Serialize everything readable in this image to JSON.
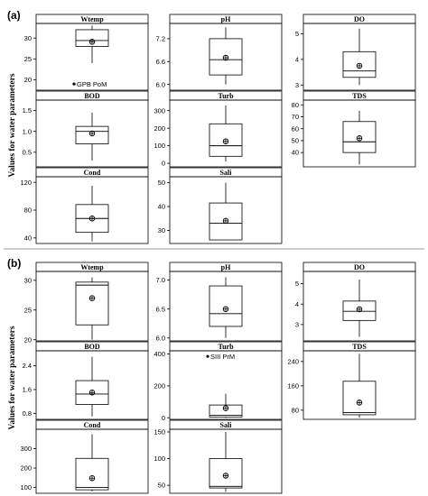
{
  "figure": {
    "sections": [
      {
        "label": "(a)",
        "ylabel": "Values for water parameters"
      },
      {
        "label": "(b)",
        "ylabel": "Values for water parameters"
      }
    ]
  },
  "chart_data": [
    {
      "type": "box",
      "section": "(a)",
      "title": "Wtemp",
      "yticks": [
        20,
        25,
        30
      ],
      "ylim": [
        17.5,
        33.5
      ],
      "box": {
        "whisker_low": 24,
        "q1": 28,
        "median": 29.4,
        "q3": 32,
        "whisker_high": 33,
        "mean": 29.1
      },
      "outliers": [
        {
          "value": 19,
          "label": "GPB PoM"
        }
      ]
    },
    {
      "type": "box",
      "section": "(a)",
      "title": "pH",
      "yticks": [
        6.0,
        6.6,
        7.2
      ],
      "ylim": [
        5.85,
        7.6
      ],
      "box": {
        "whisker_low": 6.0,
        "q1": 6.25,
        "median": 6.65,
        "q3": 7.2,
        "whisker_high": 7.5,
        "mean": 6.7
      },
      "outliers": []
    },
    {
      "type": "box",
      "section": "(a)",
      "title": "DO",
      "yticks": [
        3,
        4,
        5
      ],
      "ylim": [
        2.8,
        5.4
      ],
      "box": {
        "whisker_low": 3.0,
        "q1": 3.3,
        "median": 3.55,
        "q3": 4.3,
        "whisker_high": 5.2,
        "mean": 3.75
      },
      "outliers": []
    },
    {
      "type": "box",
      "section": "(a)",
      "title": "BOD",
      "yticks": [
        0.5,
        1.0,
        1.5
      ],
      "ylim": [
        0.15,
        1.75
      ],
      "box": {
        "whisker_low": 0.3,
        "q1": 0.7,
        "median": 1.0,
        "q3": 1.12,
        "whisker_high": 1.45,
        "mean": 0.95
      },
      "outliers": []
    },
    {
      "type": "box",
      "section": "(a)",
      "title": "Turb",
      "yticks": [
        0,
        100,
        200,
        300
      ],
      "ylim": [
        -20,
        360
      ],
      "box": {
        "whisker_low": 10,
        "q1": 40,
        "median": 100,
        "q3": 225,
        "whisker_high": 330,
        "mean": 125
      },
      "outliers": []
    },
    {
      "type": "box",
      "section": "(a)",
      "title": "TDS",
      "yticks": [
        40,
        50,
        60,
        70,
        80
      ],
      "ylim": [
        28,
        84
      ],
      "box": {
        "whisker_low": 30,
        "q1": 40,
        "median": 49,
        "q3": 66,
        "whisker_high": 75,
        "mean": 52
      },
      "outliers": []
    },
    {
      "type": "box",
      "section": "(a)",
      "title": "Cond",
      "yticks": [
        40,
        80,
        120
      ],
      "ylim": [
        32,
        128
      ],
      "box": {
        "whisker_low": 35,
        "q1": 48,
        "median": 68,
        "q3": 88,
        "whisker_high": 115,
        "mean": 68
      },
      "outliers": []
    },
    {
      "type": "box",
      "section": "(a)",
      "title": "Sali",
      "yticks": [
        30,
        40,
        50
      ],
      "ylim": [
        24.5,
        52.5
      ],
      "box": {
        "whisker_low": 26,
        "q1": 26,
        "median": 33,
        "q3": 41.5,
        "whisker_high": 50,
        "mean": 34
      },
      "outliers": []
    },
    {
      "type": "box",
      "section": "(b)",
      "title": "Wtemp",
      "yticks": [
        20,
        25,
        30
      ],
      "ylim": [
        19.8,
        31.5
      ],
      "box": {
        "whisker_low": 20,
        "q1": 22.5,
        "median": 29.2,
        "q3": 29.7,
        "whisker_high": 30.5,
        "mean": 27
      },
      "outliers": []
    },
    {
      "type": "box",
      "section": "(b)",
      "title": "pH",
      "yticks": [
        6.0,
        6.5,
        7.0
      ],
      "ylim": [
        5.95,
        7.15
      ],
      "box": {
        "whisker_low": 6.0,
        "q1": 6.2,
        "median": 6.42,
        "q3": 6.9,
        "whisker_high": 7.05,
        "mean": 6.5
      },
      "outliers": []
    },
    {
      "type": "box",
      "section": "(b)",
      "title": "DO",
      "yticks": [
        3,
        4,
        5
      ],
      "ylim": [
        2.2,
        5.6
      ],
      "box": {
        "whisker_low": 2.4,
        "q1": 3.2,
        "median": 3.65,
        "q3": 4.15,
        "whisker_high": 5.2,
        "mean": 3.75
      },
      "outliers": []
    },
    {
      "type": "box",
      "section": "(b)",
      "title": "BOD",
      "yticks": [
        0.8,
        1.6,
        2.4
      ],
      "ylim": [
        0.6,
        2.9
      ],
      "box": {
        "whisker_low": 0.7,
        "q1": 1.1,
        "median": 1.45,
        "q3": 1.9,
        "whisker_high": 2.7,
        "mean": 1.5
      },
      "outliers": []
    },
    {
      "type": "box",
      "section": "(b)",
      "title": "Turb",
      "yticks": [
        0,
        200,
        400
      ],
      "ylim": [
        -10,
        420
      ],
      "box": {
        "whisker_low": 0,
        "q1": 5,
        "median": 15,
        "q3": 80,
        "whisker_high": 150,
        "mean": 60
      },
      "outliers": [
        {
          "value": 385,
          "label": "SIII PrM"
        }
      ]
    },
    {
      "type": "box",
      "section": "(b)",
      "title": "TDS",
      "yticks": [
        80,
        160,
        240
      ],
      "ylim": [
        50,
        275
      ],
      "box": {
        "whisker_low": 55,
        "q1": 65,
        "median": 72,
        "q3": 175,
        "whisker_high": 265,
        "mean": 105
      },
      "outliers": []
    },
    {
      "type": "box",
      "section": "(b)",
      "title": "Cond",
      "yticks": [
        100,
        200,
        300
      ],
      "ylim": [
        70,
        400
      ],
      "box": {
        "whisker_low": 80,
        "q1": 88,
        "median": 100,
        "q3": 250,
        "whisker_high": 375,
        "mean": 148
      },
      "outliers": []
    },
    {
      "type": "box",
      "section": "(b)",
      "title": "Sali",
      "yticks": [
        50,
        100,
        150
      ],
      "ylim": [
        35,
        155
      ],
      "box": {
        "whisker_low": 38,
        "q1": 45,
        "median": 48,
        "q3": 100,
        "whisker_high": 150,
        "mean": 68
      },
      "outliers": []
    }
  ]
}
